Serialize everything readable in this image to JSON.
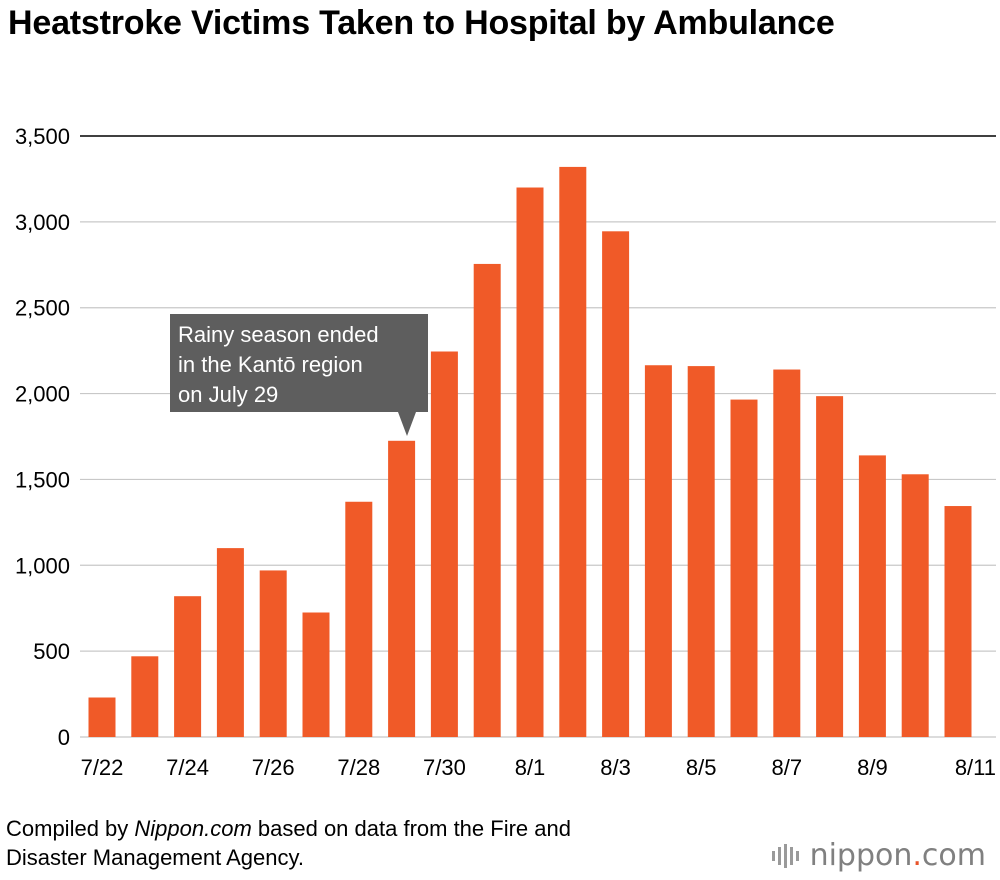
{
  "header": {
    "title": "Heatstroke Victims Taken to Hospital by Ambulance"
  },
  "chart_data": {
    "type": "bar",
    "categories": [
      "7/22",
      "7/23",
      "7/24",
      "7/25",
      "7/26",
      "7/27",
      "7/28",
      "7/29",
      "7/30",
      "7/31",
      "8/1",
      "8/2",
      "8/3",
      "8/4",
      "8/5",
      "8/6",
      "8/7",
      "8/8",
      "8/9",
      "8/10",
      "8/11"
    ],
    "tick_labels": [
      "7/22",
      "",
      "7/24",
      "",
      "7/26",
      "",
      "7/28",
      "",
      "7/30",
      "",
      "8/1",
      "",
      "8/3",
      "",
      "8/5",
      "",
      "8/7",
      "",
      "8/9",
      "",
      "8/11"
    ],
    "values": [
      230,
      470,
      820,
      1100,
      970,
      725,
      1370,
      1725,
      2245,
      2755,
      3200,
      3320,
      2945,
      2165,
      2160,
      1965,
      2140,
      1985,
      1640,
      1530,
      1345
    ],
    "ylim": [
      0,
      3500
    ],
    "yticks": [
      0,
      500,
      1000,
      1500,
      2000,
      2500,
      3000,
      3500
    ],
    "ytick_labels": [
      "0",
      "500",
      "1,000",
      "1,500",
      "2,000",
      "2,500",
      "3,000",
      "3,500"
    ],
    "bar_color": "#f05a28",
    "grid": true,
    "annotation": {
      "lines": [
        "Rainy season ended",
        "in the Kantō region",
        "on July 29"
      ],
      "points_to": "7/29"
    }
  },
  "footer": {
    "prefix": "Compiled by ",
    "source": "Nippon.com",
    "suffix": " based on data from the Fire and",
    "line2": "Disaster Management Agency."
  },
  "logo": {
    "name": "nippon",
    "dot": ".",
    "tld": "com"
  }
}
